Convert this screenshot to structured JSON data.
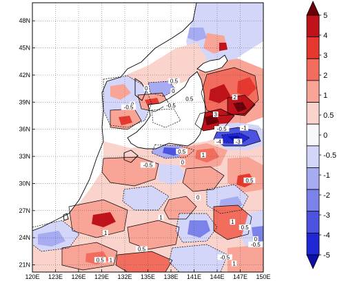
{
  "map": {
    "lon_ticks": [
      "120E",
      "123E",
      "126E",
      "129E",
      "132E",
      "135E",
      "138E",
      "141E",
      "144E",
      "147E",
      "150E"
    ],
    "lat_ticks": [
      "21N",
      "24N",
      "27N",
      "30N",
      "33N",
      "36N",
      "39N",
      "42N",
      "45N",
      "48N"
    ],
    "lon_range": [
      120,
      150
    ],
    "lat_range": [
      20.2,
      50
    ],
    "grid_lines": "dotted"
  },
  "colorbar": {
    "labels": [
      "5",
      "4",
      "3",
      "2",
      "1",
      "0.5",
      "0",
      "-0.5",
      "-1",
      "-2",
      "-3",
      "-4",
      "-5"
    ],
    "colors": [
      "#6b0008",
      "#c0121a",
      "#e6382f",
      "#f36d5e",
      "#f8a497",
      "#fbd3cd",
      "#f8f8fc",
      "#d3d6f8",
      "#a6abf2",
      "#7b82ea",
      "#4b53e0",
      "#1f28d4",
      "#0a10a8"
    ]
  },
  "contour_labels": [
    {
      "text": "0",
      "lon": 134.8,
      "lat": 40.4
    },
    {
      "text": "0",
      "lon": 133.0,
      "lat": 38.6
    },
    {
      "text": "-0.5",
      "lon": 132.5,
      "lat": 38.3
    },
    {
      "text": "-0.5",
      "lon": 138.0,
      "lat": 38.5
    },
    {
      "text": "0.5",
      "lon": 138.4,
      "lat": 41.2
    },
    {
      "text": "0",
      "lon": 138.3,
      "lat": 40.1
    },
    {
      "text": "0.5",
      "lon": 140.4,
      "lat": 39.2
    },
    {
      "text": "2",
      "lon": 146.3,
      "lat": 39.4
    },
    {
      "text": "3",
      "lon": 143.8,
      "lat": 37.5
    },
    {
      "text": "-0.5",
      "lon": 144.6,
      "lat": 35.9
    },
    {
      "text": "-1",
      "lon": 147.5,
      "lat": 36.0
    },
    {
      "text": "-4",
      "lon": 144.2,
      "lat": 34.5
    },
    {
      "text": "-3",
      "lon": 146.7,
      "lat": 34.5
    },
    {
      "text": "0.5",
      "lon": 139.4,
      "lat": 33.4
    },
    {
      "text": "1",
      "lon": 142.2,
      "lat": 33.0
    },
    {
      "text": "0",
      "lon": 139.5,
      "lat": 32.2
    },
    {
      "text": "-0.5",
      "lon": 135.0,
      "lat": 31.9
    },
    {
      "text": "0.5",
      "lon": 148.2,
      "lat": 30.2
    },
    {
      "text": "0",
      "lon": 141.5,
      "lat": 28.3
    },
    {
      "text": "1",
      "lon": 136.7,
      "lat": 26.1
    },
    {
      "text": "1",
      "lon": 146.0,
      "lat": 25.6
    },
    {
      "text": "1",
      "lon": 129.5,
      "lat": 24.4
    },
    {
      "text": "0.5",
      "lon": 147.6,
      "lat": 25.0
    },
    {
      "text": "0",
      "lon": 149.0,
      "lat": 23.7
    },
    {
      "text": "-0.5",
      "lon": 149.0,
      "lat": 23.1
    },
    {
      "text": "0.5",
      "lon": 134.2,
      "lat": 22.6
    },
    {
      "text": "1",
      "lon": 130.2,
      "lat": 21.4
    },
    {
      "text": "-0.5",
      "lon": 145.0,
      "lat": 21.7
    },
    {
      "text": "0.5",
      "lon": 128.8,
      "lat": 21.4
    },
    {
      "text": "1",
      "lon": 146.2,
      "lat": 21.0
    }
  ]
}
